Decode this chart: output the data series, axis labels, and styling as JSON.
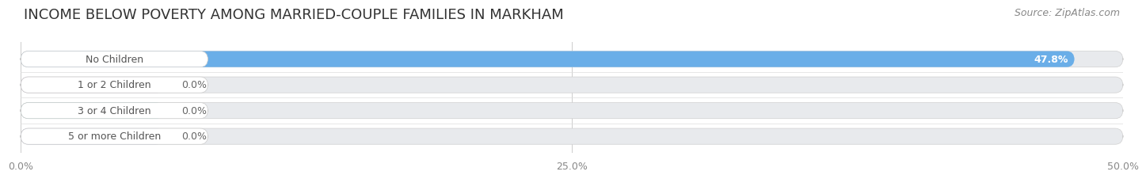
{
  "title": "INCOME BELOW POVERTY AMONG MARRIED-COUPLE FAMILIES IN MARKHAM",
  "source": "Source: ZipAtlas.com",
  "categories": [
    "No Children",
    "1 or 2 Children",
    "3 or 4 Children",
    "5 or more Children"
  ],
  "values": [
    47.8,
    0.0,
    0.0,
    0.0
  ],
  "bar_colors": [
    "#6aaee8",
    "#c9a8d4",
    "#6ec9c4",
    "#a0a8e0"
  ],
  "background_color": "#ffffff",
  "bar_bg_color": "#e8eaed",
  "xlim": [
    0,
    50
  ],
  "xticks": [
    0.0,
    25.0,
    50.0
  ],
  "xtick_labels": [
    "0.0%",
    "25.0%",
    "50.0%"
  ],
  "value_label_47": "47.8%",
  "value_label_0": "0.0%",
  "title_fontsize": 13,
  "source_fontsize": 9,
  "tick_fontsize": 9,
  "label_fontsize": 9,
  "zero_stub_pct": 6.5
}
